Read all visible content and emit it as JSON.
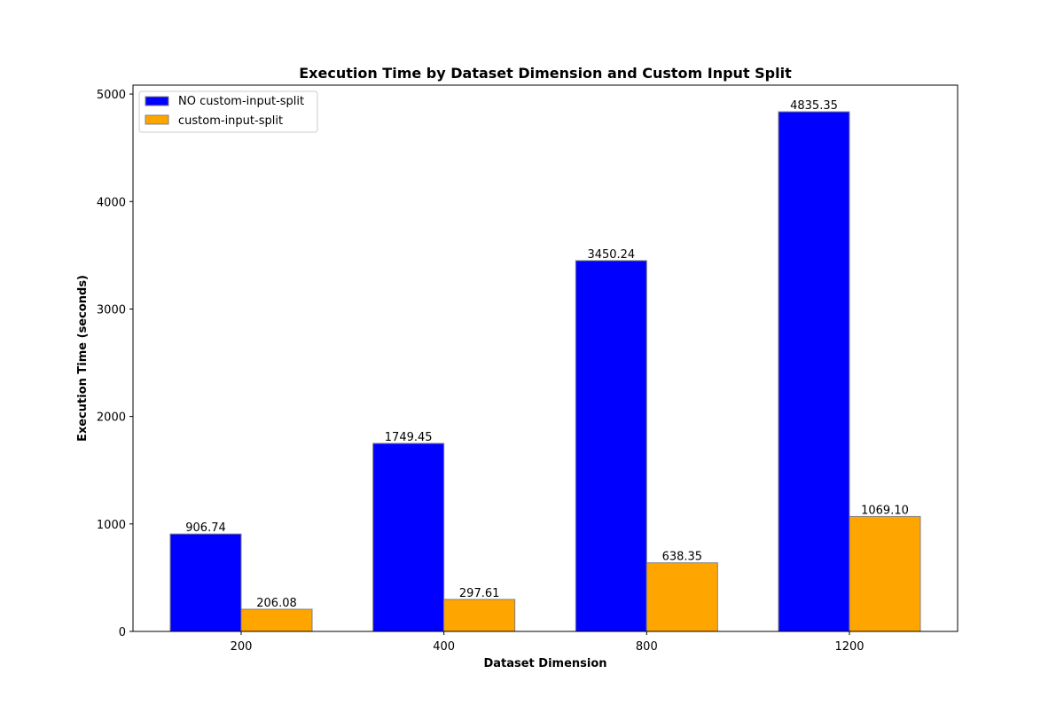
{
  "chart_data": {
    "type": "bar",
    "title": "Execution Time by Dataset Dimension and Custom Input Split",
    "xlabel": "Dataset Dimension",
    "ylabel": "Execution Time (seconds)",
    "categories": [
      "200",
      "400",
      "800",
      "1200"
    ],
    "ylim": [
      0,
      5083.12
    ],
    "yticks": [
      0,
      1000,
      2000,
      3000,
      4000,
      5000
    ],
    "series": [
      {
        "name": "NO custom-input-split",
        "color": "#0000ff",
        "values": [
          906.74,
          1749.45,
          3450.24,
          4835.35
        ],
        "labels": [
          "906.74",
          "1749.45",
          "3450.24",
          "4835.35"
        ]
      },
      {
        "name": "custom-input-split",
        "color": "#ffa500",
        "values": [
          206.08,
          297.61,
          638.35,
          1069.1
        ],
        "labels": [
          "206.08",
          "297.61",
          "638.35",
          "1069.10"
        ]
      }
    ],
    "bar_edge_color": "#808080",
    "legend": "top-left",
    "grid": false
  }
}
